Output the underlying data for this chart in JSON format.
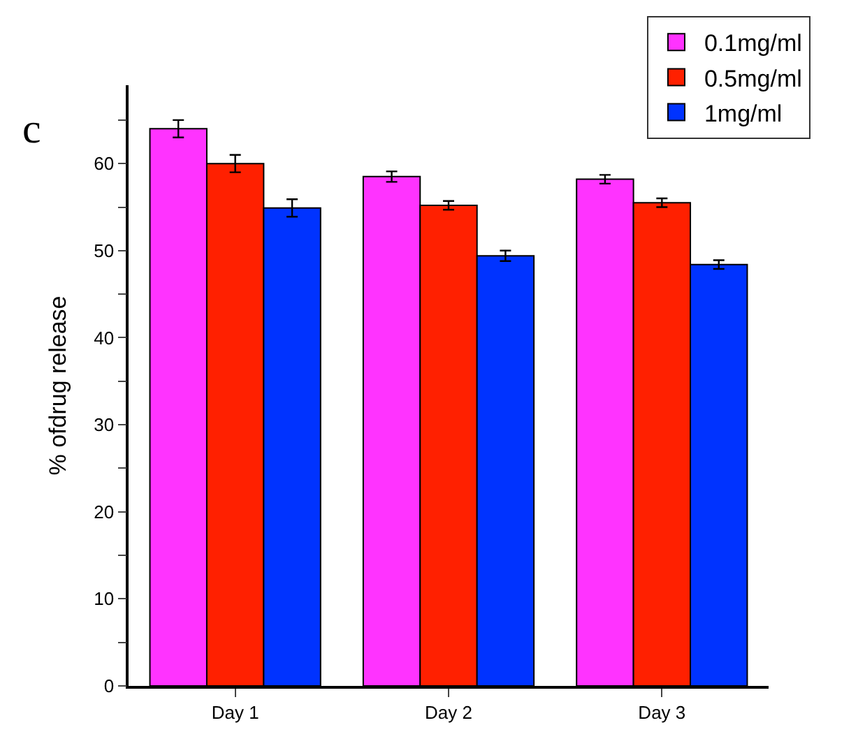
{
  "chart_data": {
    "type": "bar",
    "title": "c",
    "ylabel": "% ofdrug release",
    "categories": [
      "Day 1",
      "Day 2",
      "Day 3"
    ],
    "series": [
      {
        "name": "0.1mg/ml",
        "color": "#ff33ff",
        "values": [
          64.0,
          58.5,
          58.2
        ],
        "errors": [
          1.0,
          0.6,
          0.5
        ]
      },
      {
        "name": "0.5mg/ml",
        "color": "#ff2000",
        "values": [
          60.0,
          55.2,
          55.5
        ],
        "errors": [
          1.0,
          0.5,
          0.5
        ]
      },
      {
        "name": "1mg/ml",
        "color": "#0033ff",
        "values": [
          54.9,
          49.4,
          48.4
        ],
        "errors": [
          1.0,
          0.6,
          0.5
        ]
      }
    ],
    "ylim": [
      0,
      69
    ],
    "yticks": [
      0,
      {
        "value": 5,
        "label": null
      },
      10,
      {
        "value": 15,
        "label": null
      },
      20,
      {
        "value": 25,
        "label": null
      },
      30,
      {
        "value": 35,
        "label": null
      },
      40,
      {
        "value": 45,
        "label": null
      },
      50,
      {
        "value": 55,
        "label": null
      },
      60,
      {
        "value": 65,
        "label": null
      }
    ],
    "legend": "top right"
  }
}
